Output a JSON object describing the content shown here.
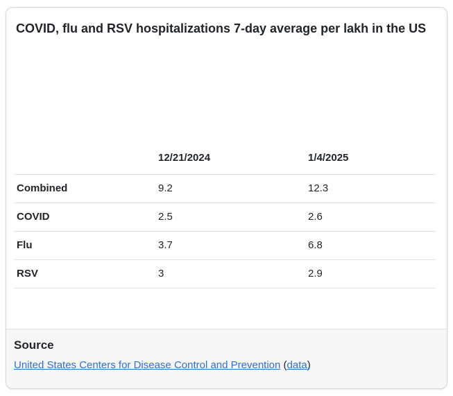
{
  "card": {
    "title": "COVID, flu and RSV hospitalizations 7-day average per lakh in the US",
    "table": {
      "columns": [
        "",
        "12/21/2024",
        "1/4/2025"
      ],
      "rows": [
        {
          "label": "Combined",
          "values": [
            "9.2",
            "12.3"
          ]
        },
        {
          "label": "COVID",
          "values": [
            "2.5",
            "2.6"
          ]
        },
        {
          "label": "Flu",
          "values": [
            "3.7",
            "6.8"
          ]
        },
        {
          "label": "RSV",
          "values": [
            "3",
            "2.9"
          ]
        }
      ]
    },
    "footer": {
      "heading": "Source",
      "link_primary": "United States Centers for Disease Control and Prevention",
      "paren_open": " (",
      "link_secondary": "data",
      "paren_close": ")"
    }
  },
  "colors": {
    "link": "#2e6fd8",
    "card_border": "#d5d5d5",
    "divider": "#dee2e6",
    "footer_bg": "#f7f7f8",
    "text": "#212529"
  },
  "chart_data": {
    "type": "table",
    "title": "COVID, flu and RSV hospitalizations 7-day average per lakh in the US",
    "columns": [
      "12/21/2024",
      "1/4/2025"
    ],
    "rows": [
      "Combined",
      "COVID",
      "Flu",
      "RSV"
    ],
    "values": [
      [
        9.2,
        12.3
      ],
      [
        2.5,
        2.6
      ],
      [
        3.7,
        6.8
      ],
      [
        3,
        2.9
      ]
    ],
    "source": "United States Centers for Disease Control and Prevention",
    "source_extra_link": "data",
    "legend_position": "none",
    "grid": "row-dividers"
  }
}
